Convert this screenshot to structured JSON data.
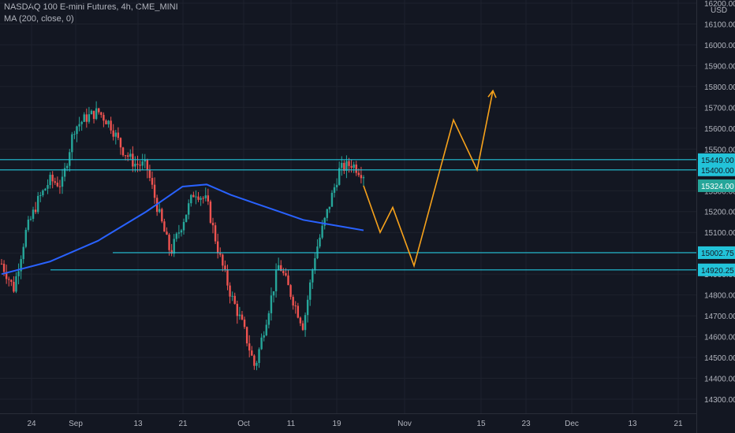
{
  "chart_data": {
    "type": "candlestick",
    "title": "NASDAQ 100 E-mini Futures, 4h, CME_MINI",
    "indicator": "MA (200, close, 0)",
    "currency": "USD",
    "x_ticks": [
      "24",
      "Sep",
      "13",
      "21",
      "Oct",
      "11",
      "19",
      "Nov",
      "15",
      "23",
      "Dec",
      "13",
      "21"
    ],
    "y_ticks": [
      16200,
      16100,
      16000,
      15900,
      15800,
      15700,
      15600,
      15500,
      15400,
      15300,
      15200,
      15100,
      15000,
      14900,
      14800,
      14700,
      14600,
      14500,
      14400,
      14300
    ],
    "y_tick_labels": [
      "16200.00",
      "16100.00",
      "16000.00",
      "15900.00",
      "15800.00",
      "15700.00",
      "15600.00",
      "15500.00",
      "15400.00",
      "15300.00",
      "15200.00",
      "15100.00",
      "15000.00",
      "14900.00",
      "14800.00",
      "14700.00",
      "14600.00",
      "14500.00",
      "14400.00",
      "14300.00"
    ],
    "ylim": [
      14250,
      16250
    ],
    "price_path": [
      [
        0,
        14950
      ],
      [
        1,
        14830
      ],
      [
        2,
        15100
      ],
      [
        3,
        15250
      ],
      [
        4,
        15350
      ],
      [
        5,
        15330
      ],
      [
        6,
        15600
      ],
      [
        7,
        15650
      ],
      [
        8,
        15680
      ],
      [
        9,
        15620
      ],
      [
        10,
        15500
      ],
      [
        11,
        15430
      ],
      [
        12,
        15420
      ],
      [
        13,
        15200
      ],
      [
        14,
        15000
      ],
      [
        15,
        15150
      ],
      [
        16,
        15300
      ],
      [
        17,
        15250
      ],
      [
        18,
        15000
      ],
      [
        19,
        14800
      ],
      [
        20,
        14650
      ],
      [
        21,
        14450
      ],
      [
        22,
        14700
      ],
      [
        23,
        14950
      ],
      [
        24,
        14800
      ],
      [
        25,
        14650
      ],
      [
        26,
        15000
      ],
      [
        27,
        15200
      ],
      [
        28,
        15400
      ],
      [
        29,
        15430
      ],
      [
        30,
        15380
      ]
    ],
    "ma_path": [
      [
        0,
        14900
      ],
      [
        4,
        14960
      ],
      [
        8,
        15060
      ],
      [
        12,
        15200
      ],
      [
        15,
        15320
      ],
      [
        17,
        15330
      ],
      [
        19,
        15280
      ],
      [
        21,
        15240
      ],
      [
        23,
        15200
      ],
      [
        25,
        15160
      ],
      [
        27,
        15140
      ],
      [
        29,
        15120
      ],
      [
        30,
        15110
      ]
    ],
    "horizontal_levels": [
      {
        "value": 15449.0,
        "label": "15449.00"
      },
      {
        "value": 15400.0,
        "label": "15400.00"
      },
      {
        "value": 15002.75,
        "label": "15002.75"
      },
      {
        "value": 14920.25,
        "label": "14920.25"
      }
    ],
    "current_price": {
      "value": 15324.0,
      "label": "15324.00"
    },
    "projection_path": [
      [
        0,
        15324
      ],
      [
        1,
        15100
      ],
      [
        2,
        15220
      ],
      [
        3,
        14940
      ],
      [
        4,
        15640
      ],
      [
        5,
        15400
      ],
      [
        6,
        15780
      ]
    ],
    "colors": {
      "background": "#131722",
      "up": "#26a69a",
      "down": "#ef5350",
      "ma": "#2962ff",
      "level": "#22c3d9",
      "projection": "#f7a21b",
      "current": "#26a69a",
      "text": "#b2b5be"
    }
  }
}
